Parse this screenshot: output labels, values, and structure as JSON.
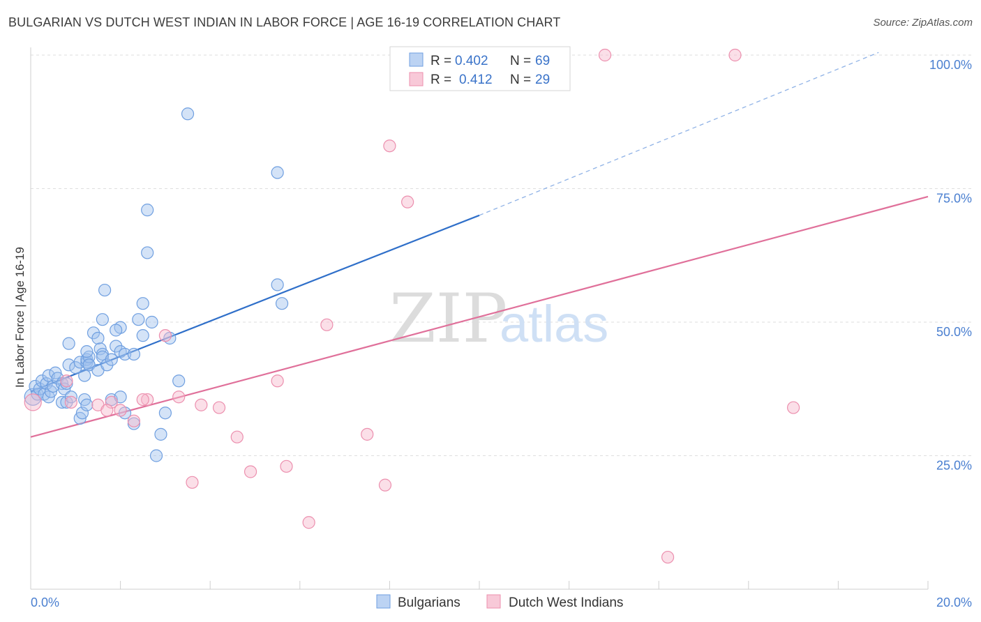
{
  "header": {
    "title": "BULGARIAN VS DUTCH WEST INDIAN IN LABOR FORCE | AGE 16-19 CORRELATION CHART",
    "source": "Source: ZipAtlas.com"
  },
  "watermark": {
    "zip": "ZIP",
    "atlas": "atlas"
  },
  "legend": {
    "r_label": "R =",
    "n_label": "N =",
    "series": [
      {
        "r": "0.402",
        "n": "69",
        "color": "#6f9fe0"
      },
      {
        "r": "0.412",
        "n": "29",
        "color": "#ec8fae"
      }
    ]
  },
  "bottom_legend": [
    "Bulgarians",
    "Dutch West Indians"
  ],
  "chart_data": {
    "type": "scatter",
    "title": "BULGARIAN VS DUTCH WEST INDIAN IN LABOR FORCE | AGE 16-19 CORRELATION CHART",
    "xlabel": "",
    "ylabel": "In Labor Force | Age 16-19",
    "xlim": [
      0,
      20
    ],
    "ylim": [
      0,
      102.5
    ],
    "x_ticks": [
      0,
      20
    ],
    "x_tick_labels": [
      "0.0%",
      "20.0%"
    ],
    "y_ticks": [
      25,
      50,
      75,
      100
    ],
    "y_tick_labels": [
      "25.0%",
      "50.0%",
      "75.0%",
      "100.0%"
    ],
    "grid": true,
    "legend_position": "top-center",
    "series": [
      {
        "name": "Bulgarians",
        "color": "#6f9fe0",
        "points": [
          [
            0.05,
            36.0
          ],
          [
            0.1,
            38.0
          ],
          [
            0.15,
            36.5
          ],
          [
            0.2,
            37.5
          ],
          [
            0.25,
            39.0
          ],
          [
            0.3,
            36.5
          ],
          [
            0.35,
            38.5
          ],
          [
            0.4,
            36.0
          ],
          [
            0.45,
            37.0
          ],
          [
            0.5,
            38.0
          ],
          [
            0.4,
            40.0
          ],
          [
            0.55,
            40.5
          ],
          [
            0.6,
            39.5
          ],
          [
            0.7,
            38.5
          ],
          [
            0.75,
            37.5
          ],
          [
            0.7,
            35.0
          ],
          [
            0.8,
            38.5
          ],
          [
            0.8,
            35.0
          ],
          [
            0.9,
            36.0
          ],
          [
            0.85,
            42.0
          ],
          [
            0.85,
            46.0
          ],
          [
            1.0,
            41.5
          ],
          [
            1.1,
            42.5
          ],
          [
            1.2,
            40.0
          ],
          [
            1.25,
            42.5
          ],
          [
            1.25,
            43.0
          ],
          [
            1.3,
            42.0
          ],
          [
            1.1,
            32.0
          ],
          [
            1.15,
            33.0
          ],
          [
            1.2,
            35.5
          ],
          [
            1.25,
            34.5
          ],
          [
            1.3,
            43.5
          ],
          [
            1.25,
            44.5
          ],
          [
            1.3,
            42.0
          ],
          [
            1.4,
            48.0
          ],
          [
            1.5,
            47.0
          ],
          [
            1.55,
            45.0
          ],
          [
            1.6,
            44.0
          ],
          [
            1.6,
            43.5
          ],
          [
            1.5,
            41.0
          ],
          [
            1.7,
            42.0
          ],
          [
            1.8,
            43.0
          ],
          [
            1.6,
            50.5
          ],
          [
            1.65,
            56.0
          ],
          [
            1.9,
            45.5
          ],
          [
            2.0,
            44.5
          ],
          [
            2.0,
            49.0
          ],
          [
            2.1,
            44.0
          ],
          [
            1.9,
            48.5
          ],
          [
            2.3,
            44.0
          ],
          [
            2.4,
            50.5
          ],
          [
            2.1,
            33.0
          ],
          [
            2.3,
            31.0
          ],
          [
            1.8,
            35.5
          ],
          [
            2.0,
            36.0
          ],
          [
            2.5,
            47.5
          ],
          [
            2.5,
            53.5
          ],
          [
            2.6,
            63.0
          ],
          [
            2.6,
            71.0
          ],
          [
            2.7,
            50.0
          ],
          [
            2.8,
            25.0
          ],
          [
            2.9,
            29.0
          ],
          [
            3.0,
            33.0
          ],
          [
            3.1,
            47.0
          ],
          [
            3.3,
            39.0
          ],
          [
            3.5,
            89.0
          ],
          [
            5.5,
            78.0
          ],
          [
            5.6,
            53.5
          ],
          [
            5.5,
            57.0
          ]
        ]
      },
      {
        "name": "Dutch West Indians",
        "color": "#ec8fae",
        "points": [
          [
            0.05,
            35.0
          ],
          [
            0.8,
            39.0
          ],
          [
            1.5,
            34.5
          ],
          [
            1.8,
            35.0
          ],
          [
            2.0,
            33.5
          ],
          [
            2.3,
            31.5
          ],
          [
            2.6,
            35.5
          ],
          [
            3.0,
            47.5
          ],
          [
            3.3,
            36.0
          ],
          [
            3.6,
            20.0
          ],
          [
            3.8,
            34.5
          ],
          [
            4.2,
            34.0
          ],
          [
            4.6,
            28.5
          ],
          [
            4.9,
            22.0
          ],
          [
            5.5,
            39.0
          ],
          [
            5.7,
            23.0
          ],
          [
            6.2,
            12.5
          ],
          [
            6.6,
            49.5
          ],
          [
            7.5,
            29.0
          ],
          [
            7.9,
            19.5
          ],
          [
            8.0,
            83.0
          ],
          [
            8.4,
            72.5
          ],
          [
            12.8,
            100.0
          ],
          [
            14.2,
            6.0
          ],
          [
            15.7,
            100.0
          ],
          [
            17.0,
            34.0
          ],
          [
            2.5,
            35.5
          ],
          [
            1.7,
            33.5
          ],
          [
            0.9,
            35.0
          ]
        ]
      }
    ],
    "trendlines": [
      {
        "series": "Bulgarians",
        "x": [
          0,
          10
        ],
        "y": [
          37.0,
          70.0
        ],
        "dashed_x": [
          10,
          18.9
        ],
        "dashed_y": [
          70.0,
          100.5
        ]
      },
      {
        "series": "Dutch West Indians",
        "x": [
          0,
          20
        ],
        "y": [
          28.5,
          73.5
        ]
      }
    ]
  }
}
